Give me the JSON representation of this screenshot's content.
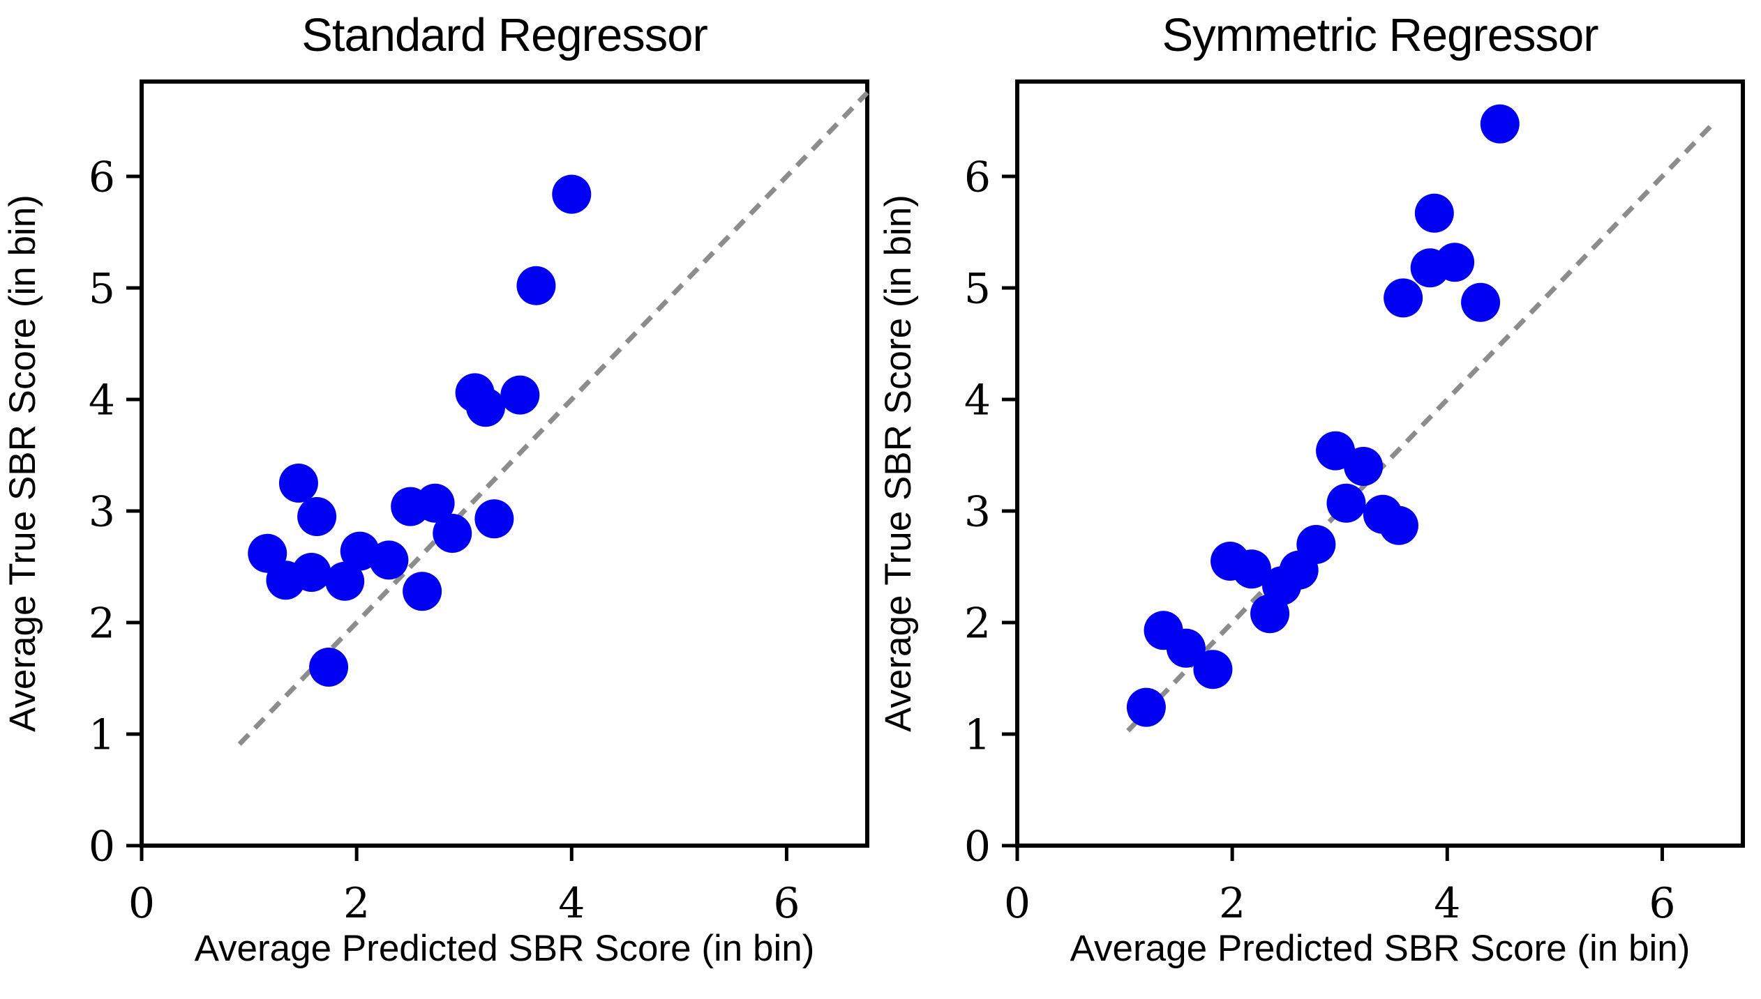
{
  "figure": {
    "background": "#ffffff",
    "point_color": "#0000f2",
    "identity_line_color": "#8c8c8c",
    "axis_color": "#000000"
  },
  "chart_data": [
    {
      "type": "scatter",
      "title": "Standard Regressor",
      "xlabel": "Average Predicted SBR Score (in bin)",
      "ylabel": "Average True SBR Score (in bin)",
      "xlim": [
        0,
        6.75
      ],
      "ylim": [
        0,
        6.85
      ],
      "xticks": [
        0,
        2,
        4,
        6
      ],
      "yticks": [
        0,
        1,
        2,
        3,
        4,
        5,
        6
      ],
      "grid": false,
      "legend": "none",
      "identity_line": {
        "style": "dashed",
        "from": 0.91,
        "to": 6.75
      },
      "points": [
        [
          4.0,
          5.84
        ],
        [
          3.67,
          5.02
        ],
        [
          3.52,
          4.04
        ],
        [
          3.1,
          4.06
        ],
        [
          3.2,
          3.93
        ],
        [
          1.46,
          3.25
        ],
        [
          1.63,
          2.95
        ],
        [
          2.5,
          3.04
        ],
        [
          2.73,
          3.07
        ],
        [
          2.89,
          2.8
        ],
        [
          3.28,
          2.93
        ],
        [
          1.17,
          2.62
        ],
        [
          1.34,
          2.38
        ],
        [
          1.58,
          2.45
        ],
        [
          1.89,
          2.37
        ],
        [
          2.03,
          2.64
        ],
        [
          2.3,
          2.56
        ],
        [
          2.61,
          2.28
        ],
        [
          1.74,
          1.6
        ]
      ]
    },
    {
      "type": "scatter",
      "title": "Symmetric Regressor",
      "xlabel": "Average Predicted SBR Score (in bin)",
      "ylabel": "Average True SBR Score (in bin)",
      "xlim": [
        0,
        6.75
      ],
      "ylim": [
        0,
        6.85
      ],
      "xticks": [
        0,
        2,
        4,
        6
      ],
      "yticks": [
        0,
        1,
        2,
        3,
        4,
        5,
        6
      ],
      "grid": false,
      "legend": "none",
      "identity_line": {
        "style": "dashed",
        "from": 1.03,
        "to": 6.45
      },
      "points": [
        [
          4.49,
          6.47
        ],
        [
          3.88,
          5.67
        ],
        [
          4.07,
          5.23
        ],
        [
          3.84,
          5.18
        ],
        [
          3.59,
          4.91
        ],
        [
          4.31,
          4.87
        ],
        [
          2.96,
          3.54
        ],
        [
          3.22,
          3.4
        ],
        [
          3.06,
          3.07
        ],
        [
          3.4,
          2.97
        ],
        [
          3.55,
          2.87
        ],
        [
          2.78,
          2.7
        ],
        [
          2.62,
          2.47
        ],
        [
          2.46,
          2.33
        ],
        [
          2.35,
          2.08
        ],
        [
          2.18,
          2.48
        ],
        [
          1.98,
          2.55
        ],
        [
          1.36,
          1.93
        ],
        [
          1.57,
          1.77
        ],
        [
          1.82,
          1.58
        ],
        [
          1.2,
          1.24
        ]
      ]
    }
  ]
}
